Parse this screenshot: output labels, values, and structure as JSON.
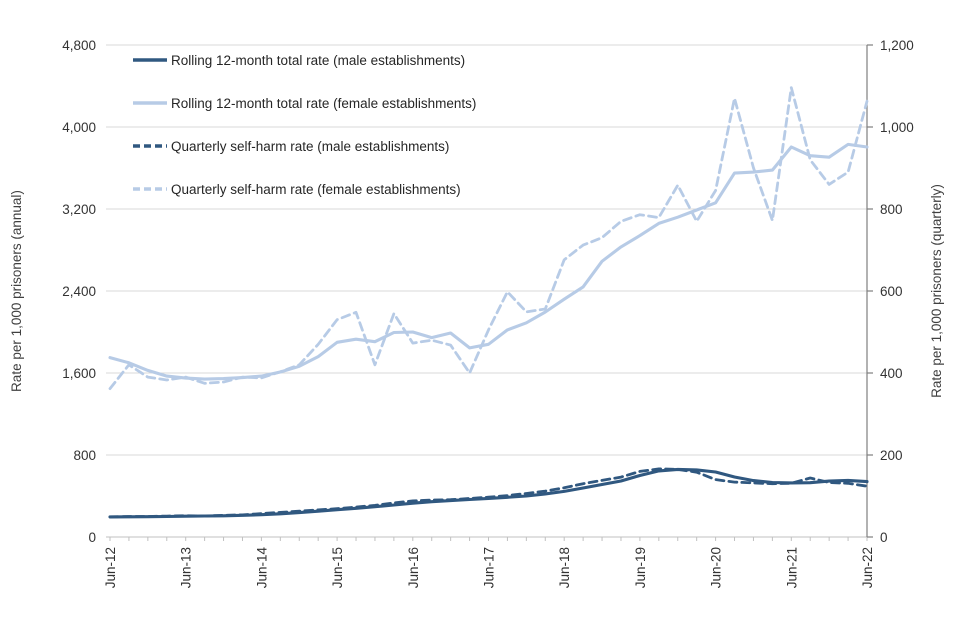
{
  "chart_data": {
    "type": "line",
    "title": "",
    "grid": true,
    "legend_position": "top-left-inside",
    "left_axis": {
      "label": "Rate per 1,000 prisoners (annual)",
      "min": 0,
      "max": 4800,
      "step": 800,
      "tick_labels": [
        "0",
        "800",
        "1,600",
        "2,400",
        "3,200",
        "4,000",
        "4,800"
      ]
    },
    "right_axis": {
      "label": "Rate per 1,000 prisoners (quarterly)",
      "min": 0,
      "max": 1200,
      "step": 200,
      "tick_labels": [
        "0",
        "200",
        "400",
        "600",
        "800",
        "1,000",
        "1,200"
      ]
    },
    "x_axis": {
      "tick_labels": [
        "Jun-12",
        "Jun-13",
        "Jun-14",
        "Jun-15",
        "Jun-16",
        "Jun-17",
        "Jun-18",
        "Jun-19",
        "Jun-20",
        "Jun-21",
        "Jun-22"
      ],
      "minor_ticks": "quarterly"
    },
    "x_quarters": [
      "Jun-12",
      "Sep-12",
      "Dec-12",
      "Mar-13",
      "Jun-13",
      "Sep-13",
      "Dec-13",
      "Mar-14",
      "Jun-14",
      "Sep-14",
      "Dec-14",
      "Mar-15",
      "Jun-15",
      "Sep-15",
      "Dec-15",
      "Mar-16",
      "Jun-16",
      "Sep-16",
      "Dec-16",
      "Mar-17",
      "Jun-17",
      "Sep-17",
      "Dec-17",
      "Mar-18",
      "Jun-18",
      "Sep-18",
      "Dec-18",
      "Mar-19",
      "Jun-19",
      "Sep-19",
      "Dec-19",
      "Mar-20",
      "Jun-20",
      "Sep-20",
      "Dec-20",
      "Mar-21",
      "Jun-21",
      "Sep-21",
      "Dec-21",
      "Mar-22",
      "Jun-22"
    ],
    "series": [
      {
        "name": "Rolling 12-month total rate (male establishments)",
        "key": "rolling-male",
        "axis": "left",
        "style": "solid",
        "color": "#305880",
        "values": [
          196,
          197,
          198,
          200,
          203,
          205,
          207,
          212,
          218,
          226,
          238,
          252,
          266,
          280,
          296,
          312,
          330,
          344,
          355,
          366,
          377,
          387,
          400,
          420,
          445,
          478,
          512,
          546,
          600,
          645,
          660,
          655,
          634,
          585,
          550,
          532,
          528,
          530,
          545,
          552,
          540
        ]
      },
      {
        "name": "Rolling 12-month total rate (female establishments)",
        "key": "rolling-female",
        "axis": "left",
        "style": "solid",
        "color": "#B7CBE6",
        "values": [
          1750,
          1700,
          1625,
          1570,
          1550,
          1540,
          1545,
          1555,
          1570,
          1610,
          1665,
          1760,
          1900,
          1930,
          1905,
          1995,
          2000,
          1945,
          1990,
          1845,
          1880,
          2020,
          2090,
          2195,
          2320,
          2440,
          2690,
          2830,
          2940,
          3060,
          3120,
          3190,
          3260,
          3550,
          3560,
          3580,
          3805,
          3720,
          3705,
          3830,
          3805
        ]
      },
      {
        "name": "Quarterly self-harm rate (male establishments)",
        "key": "quarterly-male",
        "axis": "right",
        "style": "dashed",
        "color": "#305880",
        "values": [
          49,
          50,
          50,
          51,
          52,
          51,
          53,
          54,
          57,
          60,
          63,
          66,
          69,
          73,
          77,
          83,
          88,
          90,
          91,
          94,
          97,
          101,
          106,
          112,
          120,
          130,
          138,
          146,
          160,
          166,
          165,
          158,
          140,
          134,
          132,
          130,
          131,
          144,
          133,
          131,
          124
        ]
      },
      {
        "name": "Quarterly self-harm rate (female establishments)",
        "key": "quarterly-female",
        "axis": "right",
        "style": "dashed",
        "color": "#B7CBE6",
        "values": [
          362,
          420,
          390,
          383,
          390,
          375,
          378,
          390,
          388,
          403,
          420,
          470,
          530,
          548,
          420,
          545,
          473,
          480,
          468,
          400,
          505,
          598,
          549,
          556,
          676,
          712,
          730,
          770,
          786,
          779,
          858,
          770,
          845,
          1070,
          900,
          772,
          1096,
          920,
          860,
          890,
          1063
        ]
      }
    ],
    "colors": {
      "gridline": "#D9D9D9",
      "bottom_axis": "#C0C0C0",
      "right_spine": "#7F7F7F"
    }
  }
}
